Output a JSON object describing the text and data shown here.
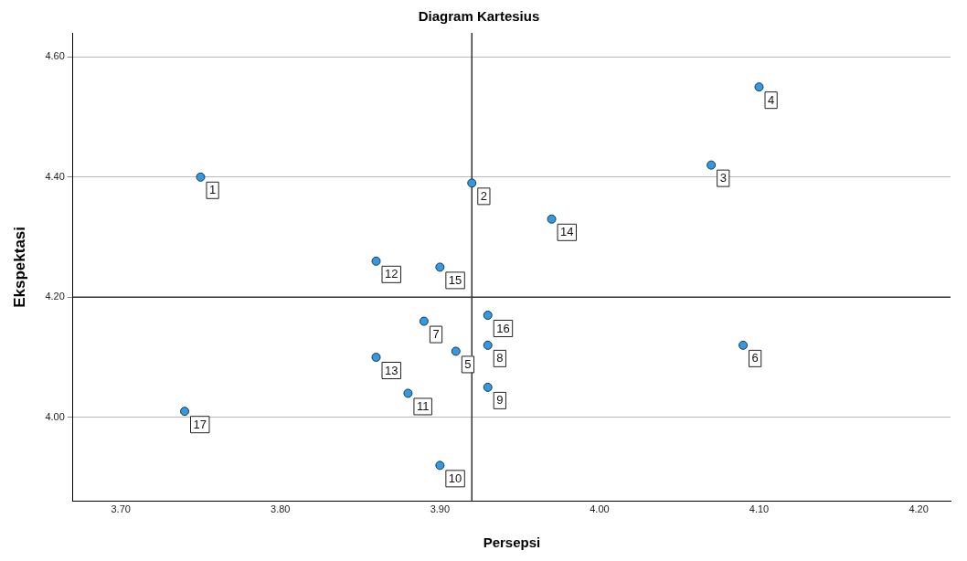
{
  "chart_data": {
    "type": "scatter",
    "title": "Diagram Kartesius",
    "xlabel": "Persepsi",
    "ylabel": "Ekspektasi",
    "xlim": [
      3.67,
      4.22
    ],
    "xticks": [
      {
        "value": 3.7,
        "label": "3.70"
      },
      {
        "value": 3.8,
        "label": "3.80"
      },
      {
        "value": 3.9,
        "label": "3.90"
      },
      {
        "value": 4.0,
        "label": "4.00"
      },
      {
        "value": 4.1,
        "label": "4.10"
      },
      {
        "value": 4.2,
        "label": "4.20"
      }
    ],
    "ylim": [
      3.86,
      4.64
    ],
    "yticks": [
      {
        "value": 4.0,
        "label": "4.00"
      },
      {
        "value": 4.2,
        "label": "4.20"
      },
      {
        "value": 4.4,
        "label": "4.40"
      },
      {
        "value": 4.6,
        "label": "4.60"
      }
    ],
    "grid": "y",
    "legend": false,
    "marker": "circle",
    "series": [
      {
        "color": "#3399e0",
        "x": [
          3.75,
          3.92,
          4.07,
          4.1,
          3.91,
          4.09,
          3.89,
          3.93,
          3.93,
          3.9,
          3.88,
          3.86,
          3.86,
          3.97,
          3.9,
          3.93,
          3.74
        ],
        "values": [
          4.4,
          4.39,
          4.42,
          4.55,
          4.11,
          4.12,
          4.16,
          4.12,
          4.05,
          3.92,
          4.04,
          4.26,
          4.1,
          4.33,
          4.25,
          4.17,
          4.01
        ]
      }
    ],
    "ref_lines": [
      {
        "axis": "x",
        "value": 3.92,
        "color": "#333333"
      },
      {
        "axis": "y",
        "value": 4.2,
        "color": "#333333"
      }
    ],
    "annotations": [
      {
        "text": "1",
        "x": 3.75,
        "y": 4.4
      },
      {
        "text": "2",
        "x": 3.92,
        "y": 4.39
      },
      {
        "text": "3",
        "x": 4.07,
        "y": 4.42
      },
      {
        "text": "4",
        "x": 4.1,
        "y": 4.55
      },
      {
        "text": "5",
        "x": 3.91,
        "y": 4.11
      },
      {
        "text": "6",
        "x": 4.09,
        "y": 4.12
      },
      {
        "text": "7",
        "x": 3.89,
        "y": 4.16
      },
      {
        "text": "8",
        "x": 3.93,
        "y": 4.12
      },
      {
        "text": "9",
        "x": 3.93,
        "y": 4.05
      },
      {
        "text": "10",
        "x": 3.9,
        "y": 3.92
      },
      {
        "text": "11",
        "x": 3.88,
        "y": 4.04
      },
      {
        "text": "12",
        "x": 3.86,
        "y": 4.26
      },
      {
        "text": "13",
        "x": 3.86,
        "y": 4.1
      },
      {
        "text": "14",
        "x": 3.97,
        "y": 4.33
      },
      {
        "text": "15",
        "x": 3.9,
        "y": 4.25
      },
      {
        "text": "16",
        "x": 3.93,
        "y": 4.17
      },
      {
        "text": "17",
        "x": 3.74,
        "y": 4.01
      }
    ]
  }
}
